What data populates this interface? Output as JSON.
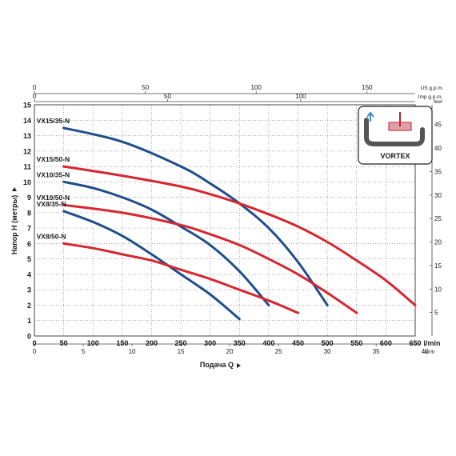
{
  "chart_data": {
    "type": "line",
    "x_axis": {
      "label": "Подача Q",
      "unit_lmin": "l/min",
      "unit_m3h": "m³/h",
      "lmin_range": [
        0,
        650
      ],
      "lmin_ticks": [
        "0",
        "50",
        "100",
        "150",
        "200",
        "250",
        "300",
        "350",
        "400",
        "450",
        "500",
        "550",
        "600",
        "650"
      ],
      "m3h_ticks": [
        "0",
        "5",
        "10",
        "15",
        "20",
        "25",
        "30",
        "35",
        "40"
      ],
      "usgpm_unit": "US g.p.m.",
      "usgpm_ticks": [
        "0",
        "50",
        "100",
        "150"
      ],
      "impgpm_unit": "Imp g.p.m.",
      "impgpm_ticks": [
        "0",
        "50",
        "100"
      ]
    },
    "y_axis": {
      "label": "Напор H (метры)",
      "range": [
        0,
        15
      ],
      "ticks": [
        "0",
        "1",
        "2",
        "3",
        "4",
        "5",
        "6",
        "7",
        "8",
        "9",
        "10",
        "11",
        "12",
        "13",
        "14",
        "15"
      ],
      "feet_unit": "feet",
      "feet_ticks": [
        "5",
        "10",
        "15",
        "20",
        "25",
        "30",
        "35",
        "40",
        "45"
      ]
    },
    "grid": true,
    "series": [
      {
        "name": "VX15/35-N",
        "color": "#1f4e8c",
        "x": [
          50,
          150,
          250,
          300,
          350,
          400,
          450,
          500
        ],
        "y": [
          13.5,
          12.6,
          11.0,
          9.9,
          8.6,
          7.0,
          4.8,
          2.0
        ]
      },
      {
        "name": "VX15/50-N",
        "color": "#d7262f",
        "x": [
          50,
          150,
          250,
          300,
          350,
          400,
          450,
          500,
          550,
          600,
          650
        ],
        "y": [
          11.0,
          10.4,
          9.7,
          9.2,
          8.6,
          7.9,
          7.1,
          6.1,
          4.9,
          3.6,
          2.0
        ]
      },
      {
        "name": "VX10/35-N",
        "color": "#1f4e8c",
        "x": [
          50,
          100,
          150,
          200,
          250,
          300,
          350,
          400
        ],
        "y": [
          10.0,
          9.6,
          9.0,
          8.2,
          7.1,
          5.9,
          4.2,
          2.0
        ]
      },
      {
        "name": "VX10/50-N",
        "color": "#d7262f",
        "x": [
          50,
          150,
          250,
          300,
          350,
          400,
          450,
          500,
          550
        ],
        "y": [
          8.5,
          8.0,
          7.2,
          6.6,
          5.9,
          5.0,
          4.0,
          2.8,
          1.5
        ]
      },
      {
        "name": "VX8/35-N",
        "color": "#1f4e8c",
        "x": [
          50,
          100,
          150,
          200,
          250,
          300,
          350
        ],
        "y": [
          8.1,
          7.4,
          6.5,
          5.3,
          4.0,
          2.7,
          1.1
        ]
      },
      {
        "name": "VX8/50-N",
        "color": "#d7262f",
        "x": [
          50,
          100,
          150,
          200,
          250,
          300,
          350,
          400,
          450
        ],
        "y": [
          6.0,
          5.7,
          5.3,
          4.9,
          4.3,
          3.7,
          3.0,
          2.3,
          1.5
        ]
      }
    ],
    "inset": {
      "label": "VORTEX"
    }
  }
}
